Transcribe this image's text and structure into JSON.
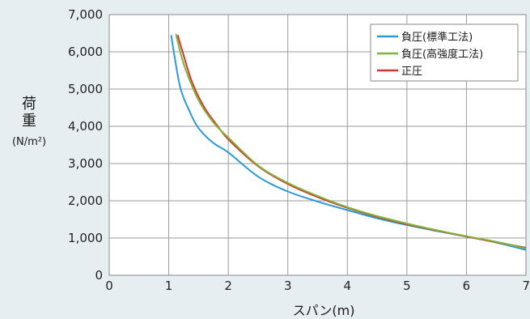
{
  "chart_data": {
    "type": "line",
    "ylabel_chars": [
      "荷",
      "重"
    ],
    "ylabel_unit": "(N/m²)",
    "xlabel": "スパン(m)",
    "xlim": [
      0,
      7
    ],
    "ylim": [
      0,
      7000
    ],
    "x_ticks": [
      0,
      1,
      2,
      3,
      4,
      5,
      6,
      7
    ],
    "y_ticks": [
      "0",
      "1,000",
      "2,000",
      "3,000",
      "4,000",
      "5,000",
      "6,000",
      "7,000"
    ],
    "grid": true,
    "legend_position": "top-right",
    "series": [
      {
        "name": "負圧(標準工法)",
        "color": "#2b9ad6",
        "x": [
          1.04,
          1.1,
          1.2,
          1.35,
          1.5,
          1.75,
          2.0,
          2.5,
          3.0,
          3.5,
          4.0,
          4.5,
          5.0,
          5.5,
          6.0,
          6.5,
          7.0
        ],
        "y": [
          6450,
          5850,
          5000,
          4400,
          3950,
          3550,
          3300,
          2650,
          2250,
          1980,
          1750,
          1530,
          1350,
          1190,
          1040,
          880,
          680
        ]
      },
      {
        "name": "負圧(高強度工法)",
        "color": "#7fb539",
        "x": [
          1.12,
          1.2,
          1.3,
          1.5,
          1.75,
          2.0,
          2.5,
          3.0,
          3.5,
          4.0,
          4.5,
          5.0,
          5.5,
          6.0,
          6.5,
          7.0
        ],
        "y": [
          6480,
          5950,
          5450,
          4700,
          4100,
          3700,
          2950,
          2480,
          2130,
          1830,
          1590,
          1390,
          1210,
          1050,
          900,
          720
        ]
      },
      {
        "name": "正圧",
        "color": "#d9342b",
        "x": [
          1.15,
          1.25,
          1.4,
          1.6,
          1.8,
          2.0,
          2.5,
          3.0,
          3.5,
          4.0,
          4.5,
          5.0,
          5.5,
          6.0,
          6.5,
          7.0
        ],
        "y": [
          6450,
          5900,
          5150,
          4500,
          4050,
          3650,
          2930,
          2450,
          2100,
          1810,
          1570,
          1370,
          1200,
          1040,
          890,
          740
        ]
      }
    ]
  }
}
